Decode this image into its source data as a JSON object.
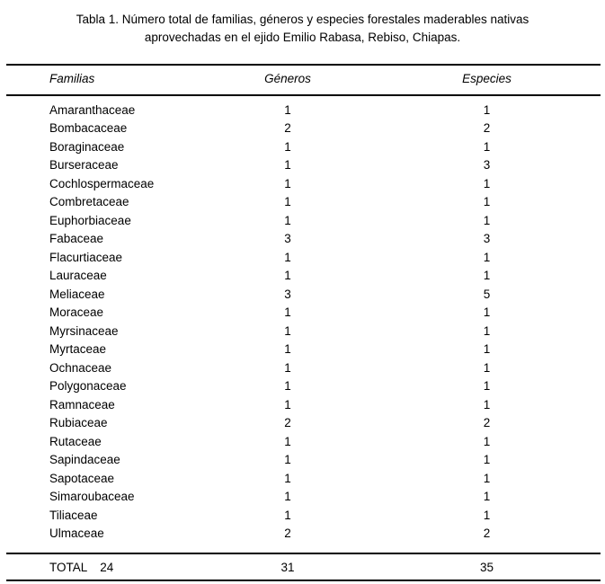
{
  "caption": {
    "line1": "Tabla 1. Número total de familias, géneros y especies forestales maderables nativas",
    "line2": "aprovechadas en el ejido Emilio Rabasa, Rebiso, Chiapas.",
    "full_text": "Tabla 1. Número total de familias, géneros y especies forestales maderables nativas aprovechadas en el ejido Emilio Rabasa, Rebiso, Chiapas."
  },
  "table": {
    "columns": [
      "Familias",
      "Géneros",
      "Especies"
    ],
    "rows": [
      {
        "familia": "Amaranthaceae",
        "generos": "1",
        "especies": "1"
      },
      {
        "familia": "Bombacaceae",
        "generos": "2",
        "especies": "2"
      },
      {
        "familia": "Boraginaceae",
        "generos": "1",
        "especies": "1"
      },
      {
        "familia": "Burseraceae",
        "generos": "1",
        "especies": "3"
      },
      {
        "familia": "Cochlospermaceae",
        "generos": "1",
        "especies": "1"
      },
      {
        "familia": "Combretaceae",
        "generos": "1",
        "especies": "1"
      },
      {
        "familia": "Euphorbiaceae",
        "generos": "1",
        "especies": "1"
      },
      {
        "familia": "Fabaceae",
        "generos": "3",
        "especies": "3"
      },
      {
        "familia": "Flacurtiaceae",
        "generos": "1",
        "especies": "1"
      },
      {
        "familia": "Lauraceae",
        "generos": "1",
        "especies": "1"
      },
      {
        "familia": "Meliaceae",
        "generos": "3",
        "especies": "5"
      },
      {
        "familia": "Moraceae",
        "generos": "1",
        "especies": "1"
      },
      {
        "familia": "Myrsinaceae",
        "generos": "1",
        "especies": "1"
      },
      {
        "familia": "Myrtaceae",
        "generos": "1",
        "especies": "1"
      },
      {
        "familia": "Ochnaceae",
        "generos": "1",
        "especies": "1"
      },
      {
        "familia": "Polygonaceae",
        "generos": "1",
        "especies": "1"
      },
      {
        "familia": "Ramnaceae",
        "generos": "1",
        "especies": "1"
      },
      {
        "familia": "Rubiaceae",
        "generos": "2",
        "especies": "2"
      },
      {
        "familia": "Rutaceae",
        "generos": "1",
        "especies": "1"
      },
      {
        "familia": "Sapindaceae",
        "generos": "1",
        "especies": "1"
      },
      {
        "familia": "Sapotaceae",
        "generos": "1",
        "especies": "1"
      },
      {
        "familia": "Simaroubaceae",
        "generos": "1",
        "especies": "1"
      },
      {
        "familia": "Tiliaceae",
        "generos": "1",
        "especies": "1"
      },
      {
        "familia": "Ulmaceae",
        "generos": "2",
        "especies": "2"
      }
    ],
    "total": {
      "label": "TOTAL",
      "familias": "24",
      "generos": "31",
      "especies": "35"
    }
  },
  "colors": {
    "text": "#000000",
    "rule": "#000000",
    "background": "#ffffff"
  }
}
